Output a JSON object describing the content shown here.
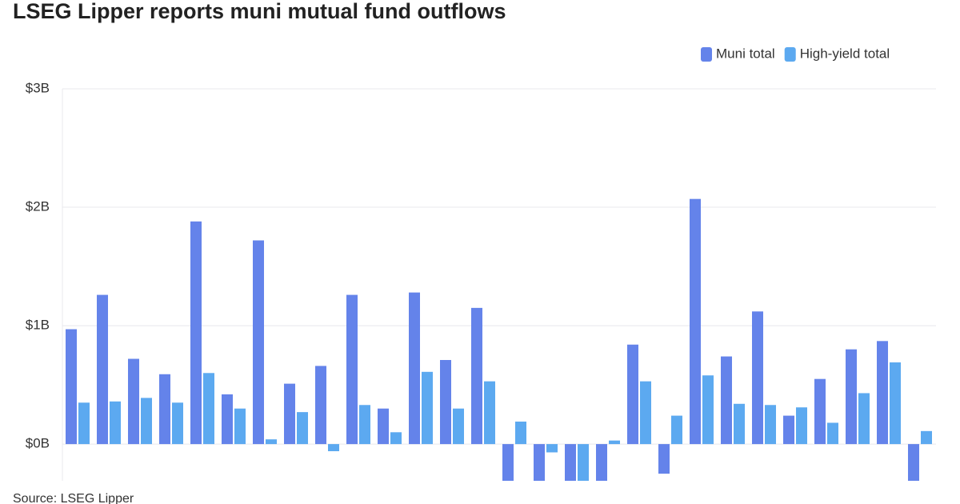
{
  "chart_data": {
    "type": "bar",
    "title": "LSEG Lipper reports muni mutual fund outflows",
    "source": "Source: LSEG Lipper",
    "categories": [
      null,
      null,
      null,
      null,
      null,
      null,
      null,
      null,
      null,
      null,
      null,
      null,
      null,
      null,
      null,
      null,
      null,
      null,
      null,
      null,
      null,
      null,
      null,
      null,
      null,
      null,
      null,
      null
    ],
    "series": [
      {
        "name": "Muni total",
        "color": "#6483ea",
        "values": [
          0.97,
          1.26,
          0.72,
          0.59,
          1.88,
          0.42,
          1.72,
          0.51,
          0.66,
          1.26,
          0.3,
          1.28,
          0.71,
          1.15,
          -0.31,
          -0.31,
          -0.31,
          -0.31,
          0.84,
          -0.25,
          2.07,
          0.74,
          1.12,
          0.24,
          0.55,
          0.8,
          0.87,
          -0.31
        ]
      },
      {
        "name": "High-yield total",
        "color": "#5ca9f0",
        "values": [
          0.35,
          0.36,
          0.39,
          0.35,
          0.6,
          0.3,
          0.04,
          0.27,
          -0.06,
          0.33,
          0.1,
          0.61,
          0.3,
          0.53,
          0.19,
          -0.07,
          -0.31,
          0.03,
          0.53,
          0.24,
          0.58,
          0.34,
          0.33,
          0.31,
          0.18,
          0.43,
          0.69,
          0.11
        ]
      }
    ],
    "ylim": [
      -0.31,
      3
    ],
    "yticks": [
      {
        "value": 0,
        "label": "$0B"
      },
      {
        "value": 1,
        "label": "$1B"
      },
      {
        "value": 2,
        "label": "$2B"
      },
      {
        "value": 3,
        "label": "$3B"
      }
    ],
    "grid": true,
    "legend": "top-right"
  }
}
